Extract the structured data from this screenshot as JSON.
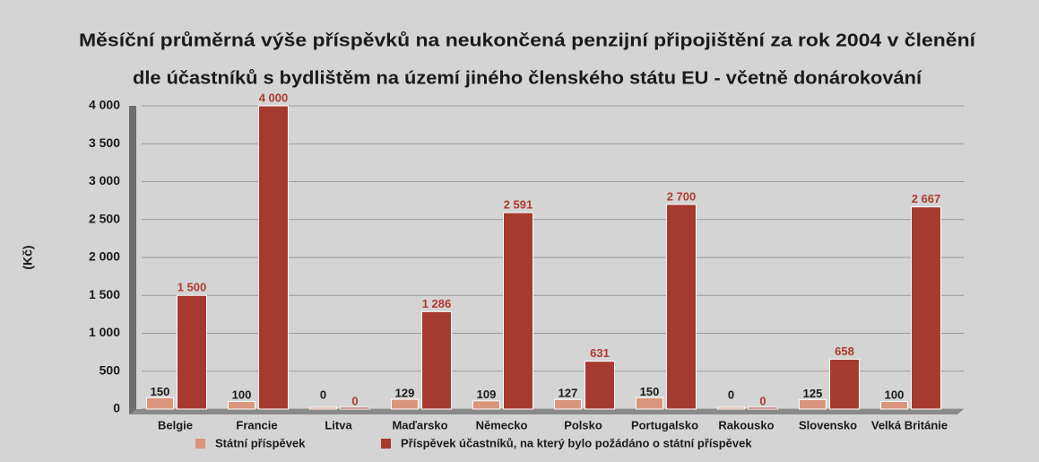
{
  "chart_data": {
    "type": "bar",
    "title": [
      "Měsíční průměrná výše příspěvků na neukončená penzijní připojištění za rok 2004 v členění",
      "dle účastníků s bydlištěm na území jiného členského státu EU - včetně donárokování"
    ],
    "y_label": "(Kč)",
    "categories": [
      "Belgie",
      "Francie",
      "Litva",
      "Maďarsko",
      "Německo",
      "Polsko",
      "Portugalsko",
      "Rakousko",
      "Slovensko",
      "Velká Británie"
    ],
    "series": [
      {
        "name": "Státní příspěvek",
        "color": "#d9967c",
        "label_color": "#1a1a1a",
        "values": [
          150,
          100,
          0,
          129,
          109,
          127,
          150,
          0,
          125,
          100
        ]
      },
      {
        "name": "Příspěvek účastníků, na který bylo požádáno o státní příspěvek",
        "color": "#a63a2e",
        "label_color": "#b03a2e",
        "values": [
          1500,
          4000,
          0,
          1286,
          2591,
          631,
          2700,
          0,
          658,
          2667
        ],
        "value_labels": [
          "1 500",
          "4 000",
          "0",
          "1 286",
          "2 591",
          "631",
          "2 700",
          "0",
          "658",
          "2 667"
        ]
      }
    ],
    "ylim": [
      0,
      4000
    ],
    "yticks": [
      0,
      500,
      {
        "value": 1000,
        "label": "1 000"
      },
      {
        "value": 1500,
        "label": "1 500"
      },
      {
        "value": 2000,
        "label": "2 000"
      },
      {
        "value": 2500,
        "label": "2 500"
      },
      {
        "value": 3000,
        "label": "3 000"
      },
      {
        "value": 3500,
        "label": "3 500"
      },
      {
        "value": 4000,
        "label": "4 000"
      }
    ],
    "grid": true
  }
}
